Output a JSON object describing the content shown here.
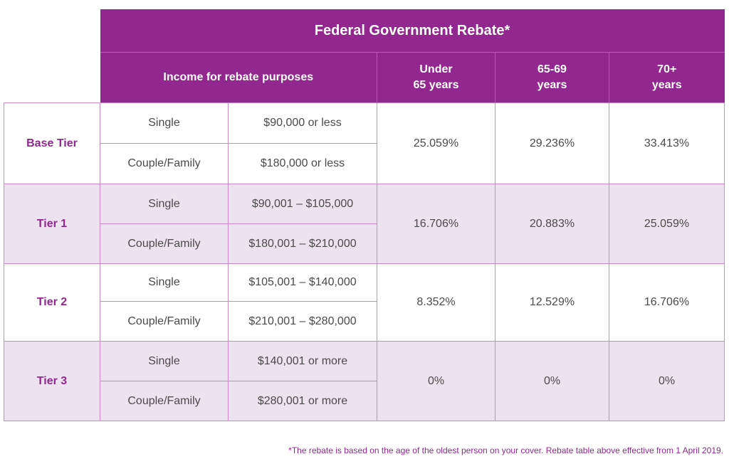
{
  "title": "Federal Government Rebate*",
  "headers": {
    "income": "Income for rebate purposes",
    "age1": [
      "Under",
      "65 years"
    ],
    "age2": [
      "65-69",
      "years"
    ],
    "age3": [
      "70+",
      "years"
    ]
  },
  "tiers": [
    {
      "label": "Base Tier",
      "rows": [
        {
          "type": "Single",
          "range": "$90,000 or less"
        },
        {
          "type": "Couple/Family",
          "range": "$180,000 or less"
        }
      ],
      "rates": [
        "25.059%",
        "29.236%",
        "33.413%"
      ]
    },
    {
      "label": "Tier 1",
      "rows": [
        {
          "type": "Single",
          "range": "$90,001 – $105,000"
        },
        {
          "type": "Couple/Family",
          "range": "$180,001 – $210,000"
        }
      ],
      "rates": [
        "16.706%",
        "20.883%",
        "25.059%"
      ]
    },
    {
      "label": "Tier 2",
      "rows": [
        {
          "type": "Single",
          "range": "$105,001 – $140,000"
        },
        {
          "type": "Couple/Family",
          "range": "$210,001 – $280,000"
        }
      ],
      "rates": [
        "8.352%",
        "12.529%",
        "16.706%"
      ]
    },
    {
      "label": "Tier 3",
      "rows": [
        {
          "type": "Single",
          "range": "$140,001 or more"
        },
        {
          "type": "Couple/Family",
          "range": "$280,001 or more"
        }
      ],
      "rates": [
        "0%",
        "0%",
        "0%"
      ]
    }
  ],
  "footnote": "*The rebate is based on the age of the oldest person on your cover. Rebate table above effective from 1 April 2019.",
  "colors": {
    "brand": "#92278f",
    "band": "#ede2ef",
    "border": "#c98bc6"
  }
}
